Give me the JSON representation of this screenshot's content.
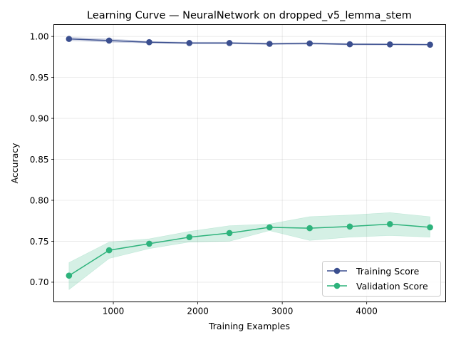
{
  "chart_data": {
    "type": "line",
    "title": "Learning Curve — NeuralNetwork on dropped_v5_lemma_stem",
    "xlabel": "Training Examples",
    "ylabel": "Accuracy",
    "xlim": [
      295,
      4935
    ],
    "ylim": [
      0.676,
      1.0145
    ],
    "x_ticks": [
      1000,
      2000,
      3000,
      4000
    ],
    "y_ticks": [
      0.7,
      0.75,
      0.8,
      0.85,
      0.9,
      0.95,
      1.0
    ],
    "y_tick_labels": [
      "0.70",
      "0.75",
      "0.80",
      "0.85",
      "0.90",
      "0.95",
      "1.00"
    ],
    "grid": true,
    "legend_position": "lower-right",
    "x": [
      475,
      950,
      1425,
      1900,
      2375,
      2850,
      3325,
      3800,
      4275,
      4750
    ],
    "series": [
      {
        "name": "Training Score",
        "color": "#3b4f8f",
        "values": [
          0.997,
          0.995,
          0.993,
          0.992,
          0.992,
          0.991,
          0.9915,
          0.9905,
          0.9903,
          0.99
        ],
        "band_upper": [
          0.999,
          0.997,
          0.994,
          0.993,
          0.993,
          0.992,
          0.9925,
          0.9915,
          0.991,
          0.9905
        ],
        "band_lower": [
          0.995,
          0.993,
          0.992,
          0.991,
          0.991,
          0.99,
          0.9905,
          0.9895,
          0.9895,
          0.9895
        ]
      },
      {
        "name": "Validation Score",
        "color": "#2eb37c",
        "values": [
          0.708,
          0.739,
          0.747,
          0.755,
          0.76,
          0.767,
          0.766,
          0.768,
          0.771,
          0.767
        ],
        "band_upper": [
          0.724,
          0.749,
          0.753,
          0.762,
          0.769,
          0.771,
          0.78,
          0.782,
          0.785,
          0.78
        ],
        "band_lower": [
          0.691,
          0.729,
          0.741,
          0.749,
          0.75,
          0.763,
          0.751,
          0.755,
          0.757,
          0.755
        ]
      }
    ]
  }
}
